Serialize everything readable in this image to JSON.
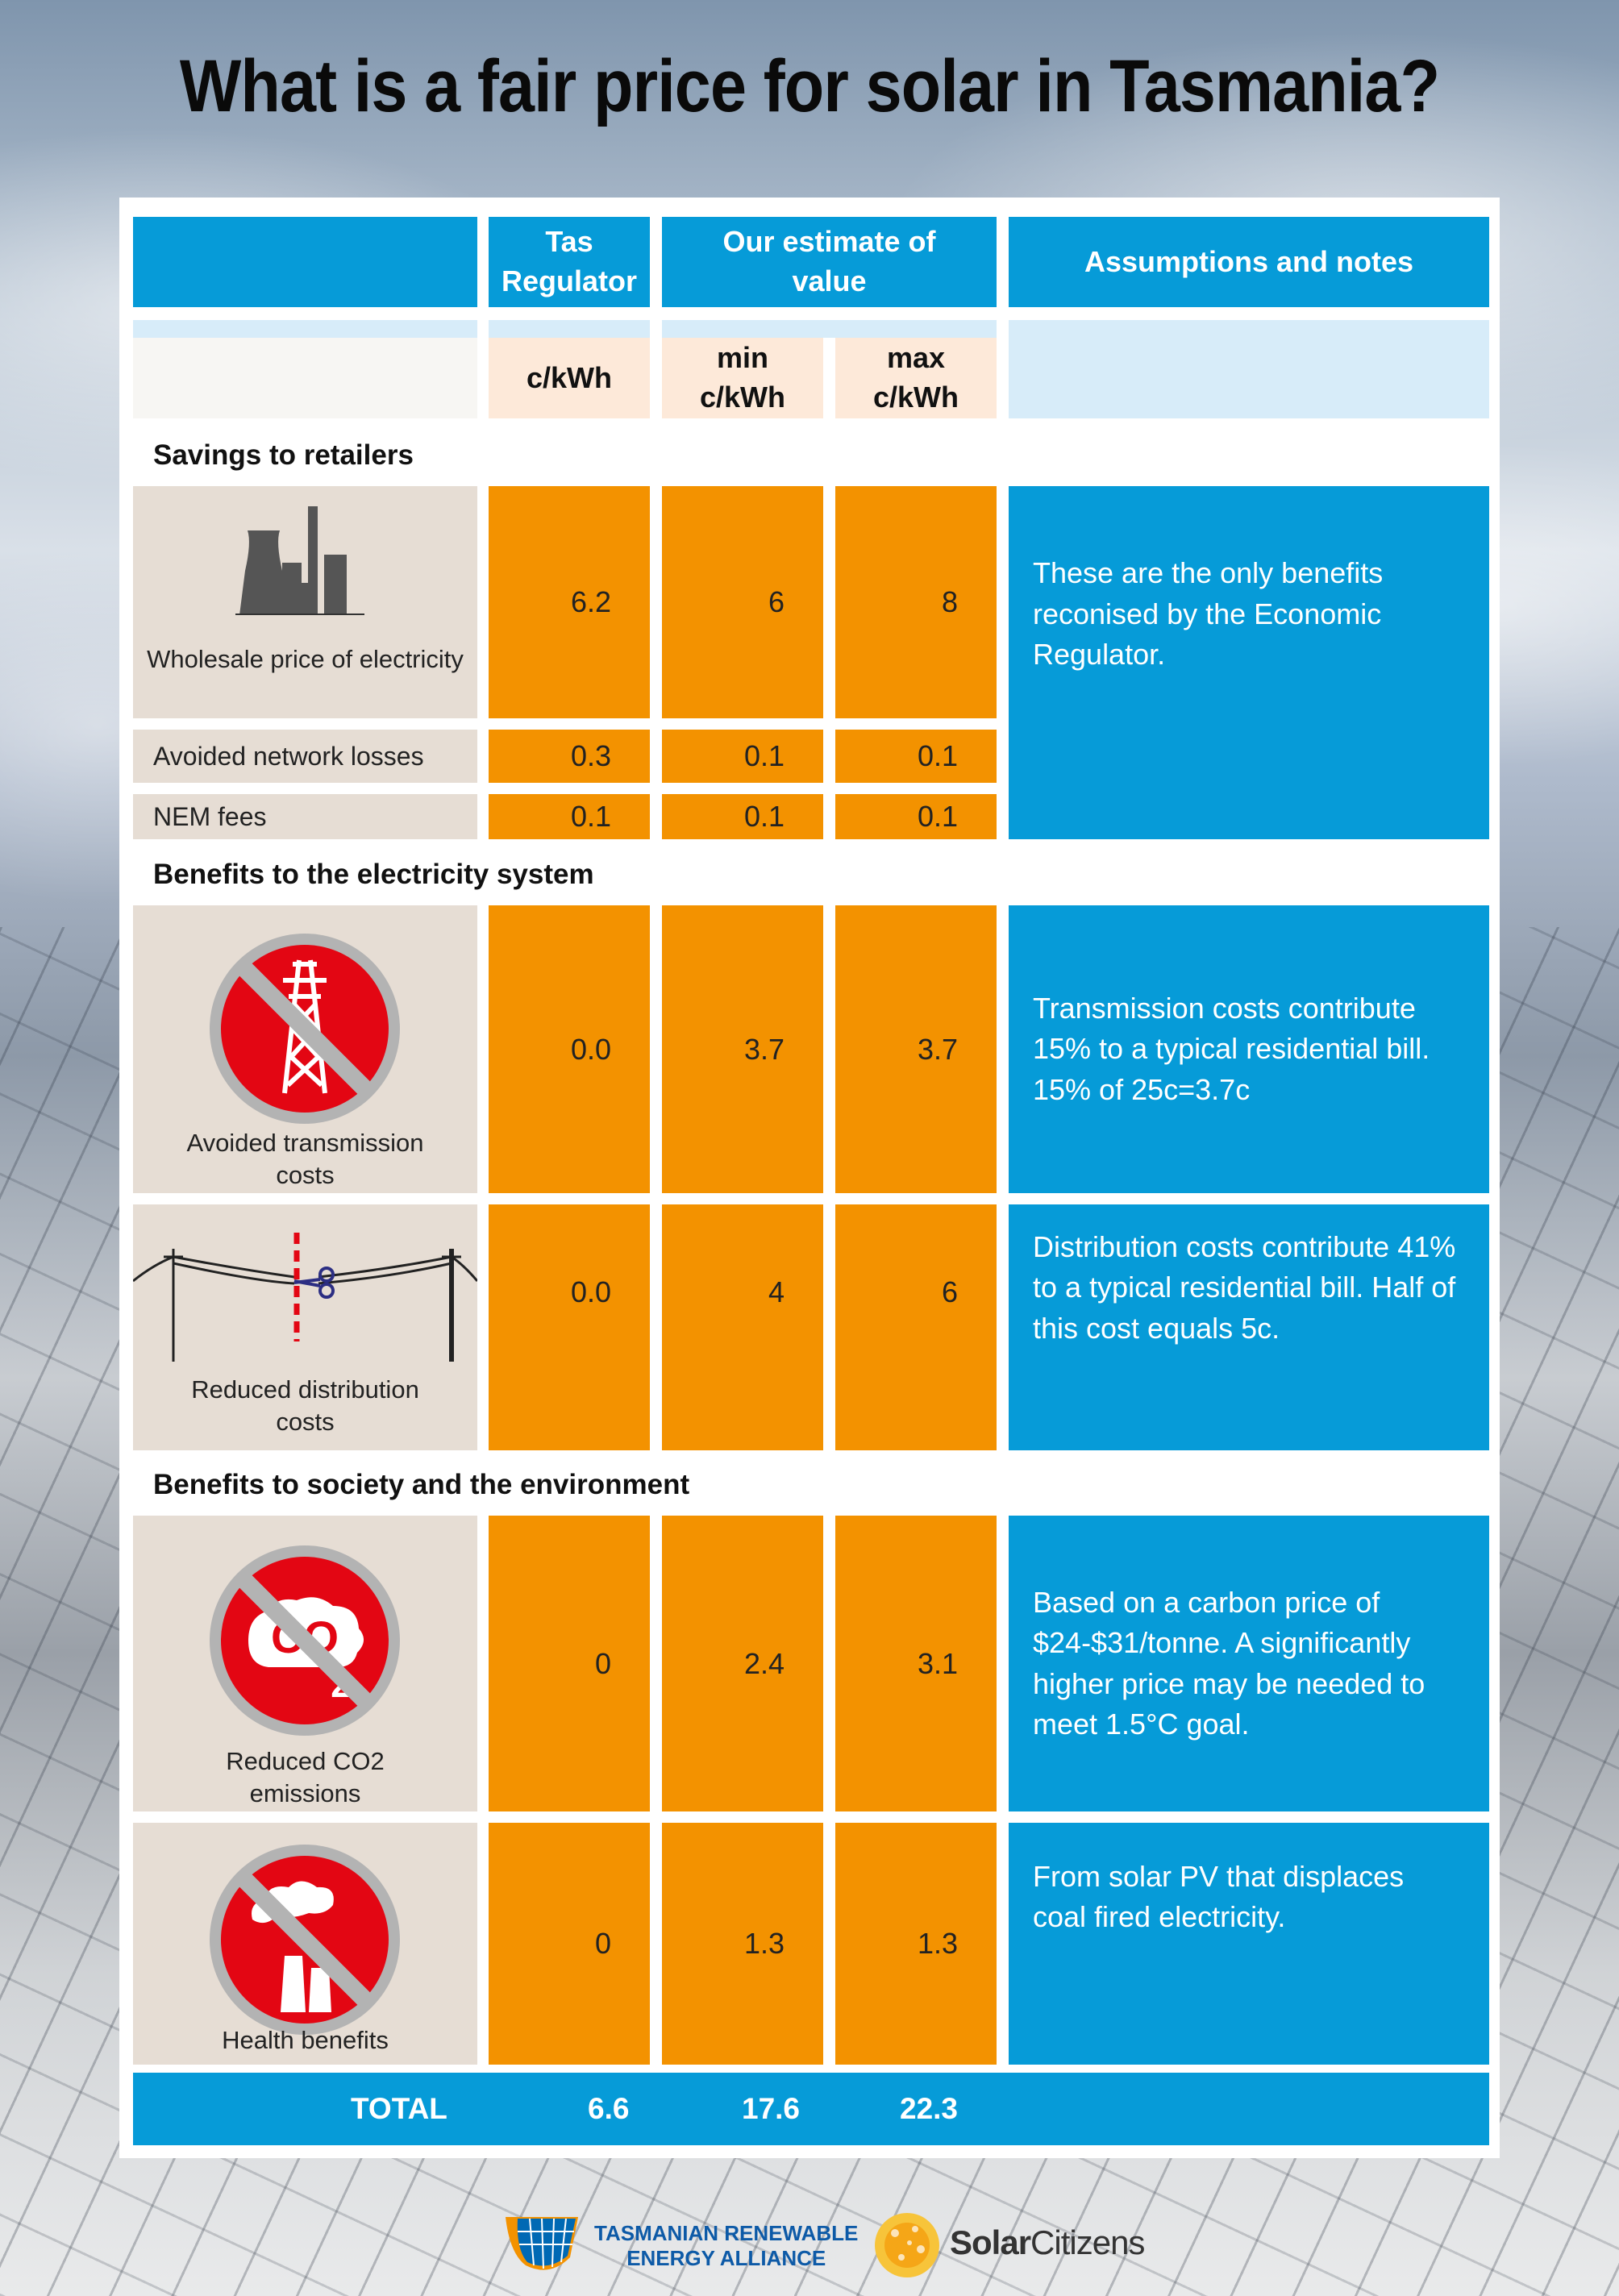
{
  "title": "What is a fair price for solar in Tasmania?",
  "header": {
    "col1": "Tas Regulator",
    "col2": "Our estimate of value",
    "col3": "Assumptions and notes",
    "unit_reg": "c/kWh",
    "unit_min": "min c/kWh",
    "unit_max": "max c/kWh"
  },
  "sections": {
    "retailers": "Savings to retailers",
    "system": "Benefits to the electricity system",
    "society": "Benefits to society and the environment"
  },
  "rows": [
    {
      "label": "Wholesale price of electricity",
      "reg": "6.2",
      "min": "6",
      "max": "8",
      "icon": "power-station-icon"
    },
    {
      "label": "Avoided network losses",
      "reg": "0.3",
      "min": "0.1",
      "max": "0.1"
    },
    {
      "label": "NEM fees",
      "reg": "0.1",
      "min": "0.1",
      "max": "0.1"
    },
    {
      "label": "Avoided transmission costs",
      "reg": "0.0",
      "min": "3.7",
      "max": "3.7",
      "icon": "no-transmission-tower-icon"
    },
    {
      "label": "Reduced distribution costs",
      "reg": "0.0",
      "min": "4",
      "max": "6",
      "icon": "cut-powerline-icon"
    },
    {
      "label": "Reduced CO2 emissions",
      "reg": "0",
      "min": "2.4",
      "max": "3.1",
      "icon": "no-co2-icon"
    },
    {
      "label": "Health benefits",
      "reg": "0",
      "min": "1.3",
      "max": "1.3",
      "icon": "no-smokestack-icon"
    }
  ],
  "notes": {
    "retailers": "These are the only benefits reconised by the Economic Regulator.",
    "transmission": "Transmission costs contribute 15% to a typical residential bill. 15% of 25c=3.7c",
    "distribution": "Distribution costs contribute 41% to a typical residential bill. Half of this cost equals 5c.",
    "co2": "Based on a carbon price of $24-$31/tonne. A significantly higher price may be needed to meet 1.5°C goal.",
    "health": "From solar PV that displaces coal fired electricity."
  },
  "total": {
    "label": "TOTAL",
    "reg": "6.6",
    "min": "17.6",
    "max": "22.3"
  },
  "logos": {
    "trea_line1": "TASMANIAN RENEWABLE",
    "trea_line2": "ENERGY ALLIANCE",
    "solar_a": "Solar",
    "solar_b": "Citizens"
  },
  "colors": {
    "blue": "#069bd8",
    "orange": "#f39200",
    "beige": "#e6ddd4",
    "red": "#e30613"
  }
}
